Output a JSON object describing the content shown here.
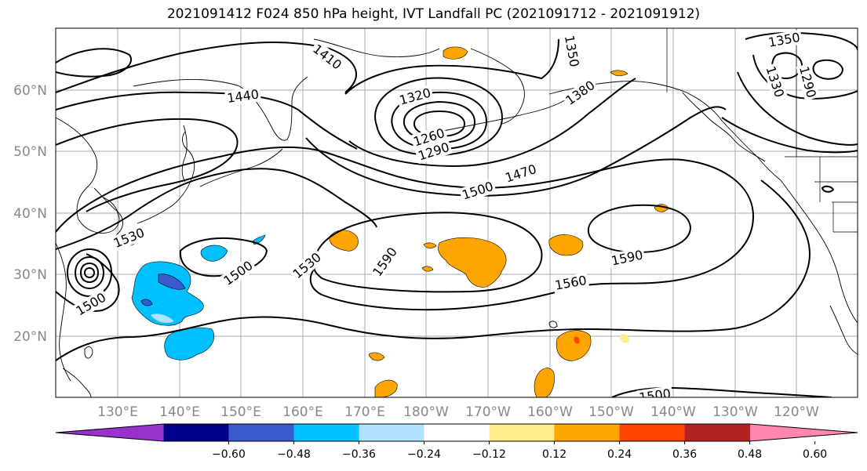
{
  "title": "2021091412 F024 850 hPa height, IVT Landfall PC (2021091712 - 2021091912)",
  "latitude_labels": [
    "60°N",
    "50°N",
    "40°N",
    "30°N",
    "20°N"
  ],
  "longitude_labels": [
    "130°E",
    "140°E",
    "150°E",
    "160°E",
    "170°E",
    "180°W",
    "170°W",
    "160°W",
    "150°W",
    "140°W",
    "130°W",
    "120°W"
  ],
  "contour_labels": [
    "1410",
    "1440",
    "1320",
    "1350",
    "1380",
    "1290",
    "1260",
    "1290",
    "1350",
    "1330",
    "1500",
    "1470",
    "1530",
    "1500",
    "1530",
    "1590",
    "1590",
    "1560",
    "1500",
    "1500"
  ],
  "colorbar": {
    "ticks": [
      "−0.60",
      "−0.48",
      "−0.36",
      "−0.24",
      "−0.12",
      "0.12",
      "0.24",
      "0.36",
      "0.48",
      "0.60"
    ],
    "colors": [
      "#9932cc",
      "#00008b",
      "#3a5acd",
      "#00bfff",
      "#b0e2ff",
      "#ffffff",
      "#ffec8b",
      "#ffa500",
      "#ff4500",
      "#b22222",
      "#ff86b0"
    ]
  }
}
